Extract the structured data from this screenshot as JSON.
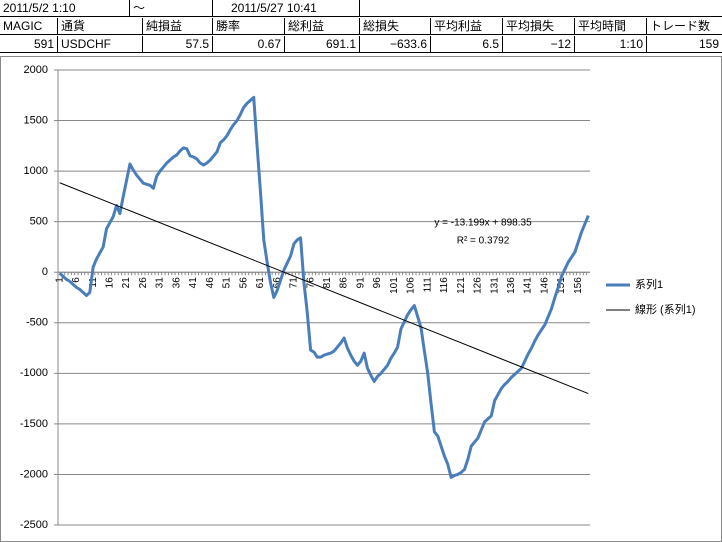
{
  "header_row": {
    "start": "2011/5/2 1:10",
    "separator": "～",
    "end": "2011/5/27 10:41"
  },
  "table": {
    "columns": [
      "MAGIC",
      "通貨",
      "純損益",
      "勝率",
      "総利益",
      "総損失",
      "平均利益",
      "平均損失",
      "平均時間",
      "トレード数"
    ],
    "rows": [
      [
        "591",
        "USDCHF",
        "57.5",
        "0.67",
        "691.1",
        "−633.6",
        "6.5",
        "−12",
        "1:10",
        "159"
      ]
    ]
  },
  "chart_data": {
    "type": "line",
    "categories": [
      1,
      null,
      null,
      null,
      null,
      6,
      null,
      null,
      null,
      null,
      11,
      null,
      null,
      null,
      null,
      16,
      null,
      null,
      null,
      null,
      21,
      null,
      null,
      null,
      null,
      26,
      null,
      null,
      null,
      null,
      31,
      null,
      null,
      null,
      null,
      36,
      null,
      null,
      null,
      null,
      41,
      null,
      null,
      null,
      null,
      46,
      null,
      null,
      null,
      null,
      51,
      null,
      null,
      null,
      null,
      56,
      null,
      null,
      null,
      null,
      61,
      null,
      null,
      null,
      null,
      66,
      null,
      null,
      null,
      null,
      71,
      null,
      null,
      null,
      null,
      76,
      null,
      null,
      null,
      null,
      81,
      null,
      null,
      null,
      null,
      86,
      null,
      null,
      null,
      null,
      91,
      null,
      null,
      null,
      null,
      96,
      null,
      null,
      null,
      null,
      101,
      null,
      null,
      null,
      null,
      106,
      null,
      null,
      null,
      null,
      111,
      null,
      null,
      null,
      null,
      116,
      null,
      null,
      null,
      null,
      121,
      null,
      null,
      null,
      null,
      126,
      null,
      null,
      null,
      null,
      131,
      null,
      null,
      null,
      null,
      136,
      null,
      null,
      null,
      null,
      141,
      null,
      null,
      null,
      null,
      146,
      null,
      null,
      null,
      null,
      151,
      null,
      null,
      null,
      null,
      156,
      null,
      null,
      null
    ],
    "series": [
      {
        "name": "系列1",
        "color": "#4a7ebb",
        "values": [
          -10,
          -40,
          -70,
          -90,
          -120,
          -150,
          -170,
          -200,
          -230,
          -200,
          50,
          130,
          190,
          250,
          430,
          490,
          550,
          660,
          580,
          750,
          910,
          1070,
          1010,
          960,
          920,
          880,
          870,
          860,
          830,
          950,
          1000,
          1040,
          1080,
          1110,
          1140,
          1160,
          1200,
          1230,
          1220,
          1150,
          1140,
          1120,
          1080,
          1060,
          1080,
          1110,
          1150,
          1190,
          1280,
          1310,
          1350,
          1410,
          1460,
          1500,
          1560,
          1630,
          1670,
          1700,
          1730,
          1250,
          800,
          320,
          100,
          -100,
          -250,
          -180,
          -80,
          20,
          90,
          160,
          280,
          320,
          340,
          -100,
          -400,
          -770,
          -790,
          -840,
          -840,
          -820,
          -810,
          -800,
          -780,
          -740,
          -700,
          -650,
          -750,
          -820,
          -880,
          -920,
          -880,
          -800,
          -950,
          -1020,
          -1080,
          -1030,
          -1000,
          -960,
          -920,
          -850,
          -800,
          -740,
          -560,
          -490,
          -420,
          -370,
          -330,
          -440,
          -550,
          -780,
          -1000,
          -1300,
          -1580,
          -1620,
          -1720,
          -1820,
          -1900,
          -2030,
          -2010,
          -2000,
          -1980,
          -1950,
          -1850,
          -1720,
          -1680,
          -1640,
          -1560,
          -1480,
          -1450,
          -1420,
          -1270,
          -1210,
          -1150,
          -1110,
          -1080,
          -1040,
          -1010,
          -980,
          -950,
          -880,
          -810,
          -750,
          -680,
          -620,
          -570,
          -520,
          -440,
          -360,
          -250,
          -150,
          -40,
          30,
          100,
          150,
          200,
          300,
          400,
          480,
          560
        ]
      }
    ],
    "trendline": {
      "name": "線形 (系列1)",
      "color": "#000000",
      "slope": -13.199,
      "intercept": 898.35,
      "equation": "y = -13.199x + 898.35",
      "r2": "R² = 0.3792"
    },
    "ylim": [
      -2500,
      2000
    ],
    "yticks": [
      -2500,
      -2000,
      -1500,
      -1000,
      -500,
      0,
      500,
      1000,
      1500,
      2000
    ],
    "grid": true,
    "legend": "right"
  }
}
